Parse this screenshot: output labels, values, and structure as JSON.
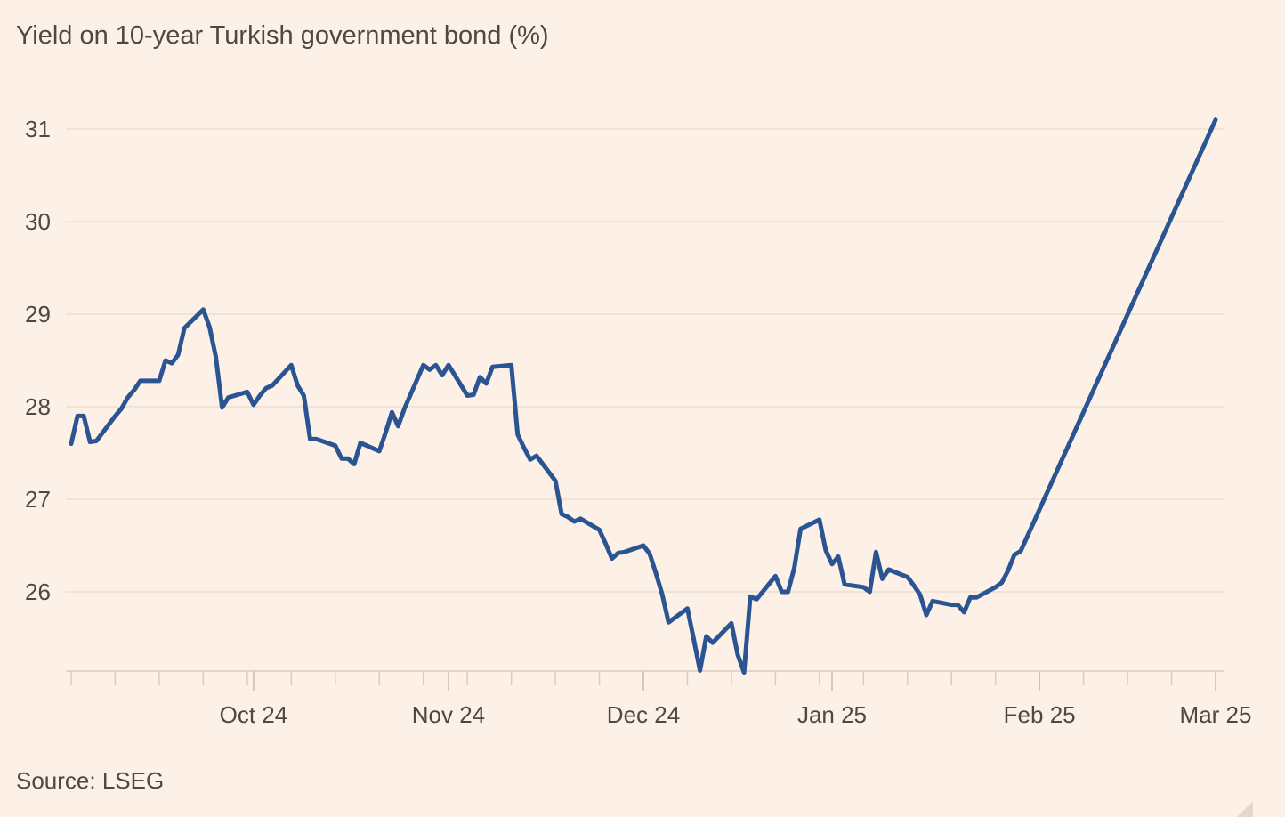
{
  "chart_data": {
    "type": "line",
    "title": "Yield on 10-year Turkish government bond (%)",
    "source": "Source: LSEG",
    "xlabel": "",
    "ylabel": "",
    "x_range": [
      "2024-09-02",
      "2025-03-03"
    ],
    "ylim": [
      25.1,
      31.15
    ],
    "y_ticks": [
      26,
      27,
      28,
      29,
      30,
      31
    ],
    "y_tick_labels": [
      "26",
      "27",
      "28",
      "29",
      "30",
      "31"
    ],
    "x_tick_dates": [
      "2024-10-01",
      "2024-11-01",
      "2024-12-02",
      "2025-01-01",
      "2025-02-03",
      "2025-03-03"
    ],
    "x_tick_labels": [
      "Oct 24",
      "Nov 24",
      "Dec 24",
      "Jan 25",
      "Feb 25",
      "Mar 25"
    ],
    "minor_tick_dates": [
      "2024-09-02",
      "2024-09-09",
      "2024-09-16",
      "2024-09-23",
      "2024-09-30",
      "2024-10-07",
      "2024-10-14",
      "2024-10-21",
      "2024-10-28",
      "2024-11-04",
      "2024-11-11",
      "2024-11-18",
      "2024-11-25",
      "2024-12-02",
      "2024-12-09",
      "2024-12-16",
      "2024-12-23",
      "2024-12-30",
      "2025-01-06",
      "2025-01-13",
      "2025-01-20",
      "2025-01-27",
      "2025-02-03",
      "2025-02-10",
      "2025-02-17",
      "2025-02-24",
      "2025-03-03"
    ],
    "grid": "horizontal",
    "line_color": "#2b5592",
    "series": [
      {
        "values": [
          [
            "2024-09-02",
            27.6
          ],
          [
            "2024-09-03",
            27.9
          ],
          [
            "2024-09-04",
            27.9
          ],
          [
            "2024-09-05",
            27.62
          ],
          [
            "2024-09-06",
            27.63
          ],
          [
            "2024-09-09",
            27.9
          ],
          [
            "2024-09-10",
            27.98
          ],
          [
            "2024-09-11",
            28.1
          ],
          [
            "2024-09-12",
            28.18
          ],
          [
            "2024-09-13",
            28.28
          ],
          [
            "2024-09-16",
            28.28
          ],
          [
            "2024-09-17",
            28.5
          ],
          [
            "2024-09-18",
            28.47
          ],
          [
            "2024-09-19",
            28.56
          ],
          [
            "2024-09-20",
            28.85
          ],
          [
            "2024-09-23",
            29.05
          ],
          [
            "2024-09-24",
            28.86
          ],
          [
            "2024-09-25",
            28.54
          ],
          [
            "2024-09-26",
            27.99
          ],
          [
            "2024-09-27",
            28.1
          ],
          [
            "2024-09-30",
            28.16
          ],
          [
            "2024-10-01",
            28.02
          ],
          [
            "2024-10-02",
            28.12
          ],
          [
            "2024-10-03",
            28.2
          ],
          [
            "2024-10-04",
            28.23
          ],
          [
            "2024-10-07",
            28.45
          ],
          [
            "2024-10-08",
            28.23
          ],
          [
            "2024-10-09",
            28.12
          ],
          [
            "2024-10-10",
            27.65
          ],
          [
            "2024-10-11",
            27.65
          ],
          [
            "2024-10-14",
            27.58
          ],
          [
            "2024-10-15",
            27.44
          ],
          [
            "2024-10-16",
            27.44
          ],
          [
            "2024-10-17",
            27.38
          ],
          [
            "2024-10-18",
            27.61
          ],
          [
            "2024-10-21",
            27.52
          ],
          [
            "2024-10-22",
            27.72
          ],
          [
            "2024-10-23",
            27.94
          ],
          [
            "2024-10-24",
            27.79
          ],
          [
            "2024-10-25",
            27.98
          ],
          [
            "2024-10-28",
            28.45
          ],
          [
            "2024-10-29",
            28.4
          ],
          [
            "2024-10-30",
            28.45
          ],
          [
            "2024-10-31",
            28.34
          ],
          [
            "2024-11-01",
            28.45
          ],
          [
            "2024-11-04",
            28.12
          ],
          [
            "2024-11-05",
            28.13
          ],
          [
            "2024-11-06",
            28.32
          ],
          [
            "2024-11-07",
            28.25
          ],
          [
            "2024-11-08",
            28.43
          ],
          [
            "2024-11-11",
            28.45
          ],
          [
            "2024-11-12",
            27.7
          ],
          [
            "2024-11-13",
            27.56
          ],
          [
            "2024-11-14",
            27.43
          ],
          [
            "2024-11-15",
            27.47
          ],
          [
            "2024-11-18",
            27.2
          ],
          [
            "2024-11-19",
            26.84
          ],
          [
            "2024-11-20",
            26.81
          ],
          [
            "2024-11-21",
            26.76
          ],
          [
            "2024-11-22",
            26.79
          ],
          [
            "2024-11-25",
            26.67
          ],
          [
            "2024-11-26",
            26.52
          ],
          [
            "2024-11-27",
            26.36
          ],
          [
            "2024-11-28",
            26.42
          ],
          [
            "2024-11-29",
            26.43
          ],
          [
            "2024-12-02",
            26.5
          ],
          [
            "2024-12-03",
            26.41
          ],
          [
            "2024-12-04",
            26.2
          ],
          [
            "2024-12-05",
            25.97
          ],
          [
            "2024-12-06",
            25.67
          ],
          [
            "2024-12-09",
            25.82
          ],
          [
            "2024-12-10",
            25.49
          ],
          [
            "2024-12-11",
            25.15
          ],
          [
            "2024-12-12",
            25.52
          ],
          [
            "2024-12-13",
            25.45
          ],
          [
            "2024-12-16",
            25.66
          ],
          [
            "2024-12-17",
            25.32
          ],
          [
            "2024-12-18",
            25.13
          ],
          [
            "2024-12-19",
            25.95
          ],
          [
            "2024-12-20",
            25.92
          ],
          [
            "2024-12-23",
            26.17
          ],
          [
            "2024-12-24",
            26.0
          ],
          [
            "2024-12-25",
            26.0
          ],
          [
            "2024-12-26",
            26.26
          ],
          [
            "2024-12-27",
            26.68
          ],
          [
            "2024-12-30",
            26.78
          ],
          [
            "2024-12-31",
            26.45
          ],
          [
            "2025-01-01",
            26.3
          ],
          [
            "2025-01-02",
            26.38
          ],
          [
            "2025-01-03",
            26.08
          ],
          [
            "2025-01-06",
            26.05
          ],
          [
            "2025-01-07",
            26.0
          ],
          [
            "2025-01-08",
            26.43
          ],
          [
            "2025-01-09",
            26.14
          ],
          [
            "2025-01-10",
            26.24
          ],
          [
            "2025-01-13",
            26.16
          ],
          [
            "2025-01-14",
            26.07
          ],
          [
            "2025-01-15",
            25.97
          ],
          [
            "2025-01-16",
            25.75
          ],
          [
            "2025-01-17",
            25.9
          ],
          [
            "2025-01-20",
            25.86
          ],
          [
            "2025-01-21",
            25.86
          ],
          [
            "2025-01-22",
            25.78
          ],
          [
            "2025-01-23",
            25.94
          ],
          [
            "2025-01-24",
            25.94
          ],
          [
            "2025-01-27",
            26.05
          ],
          [
            "2025-01-28",
            26.1
          ],
          [
            "2025-01-29",
            26.23
          ],
          [
            "2025-01-30",
            26.4
          ],
          [
            "2025-01-31",
            26.44
          ],
          [
            "2025-03-03",
            31.1
          ]
        ]
      }
    ]
  }
}
